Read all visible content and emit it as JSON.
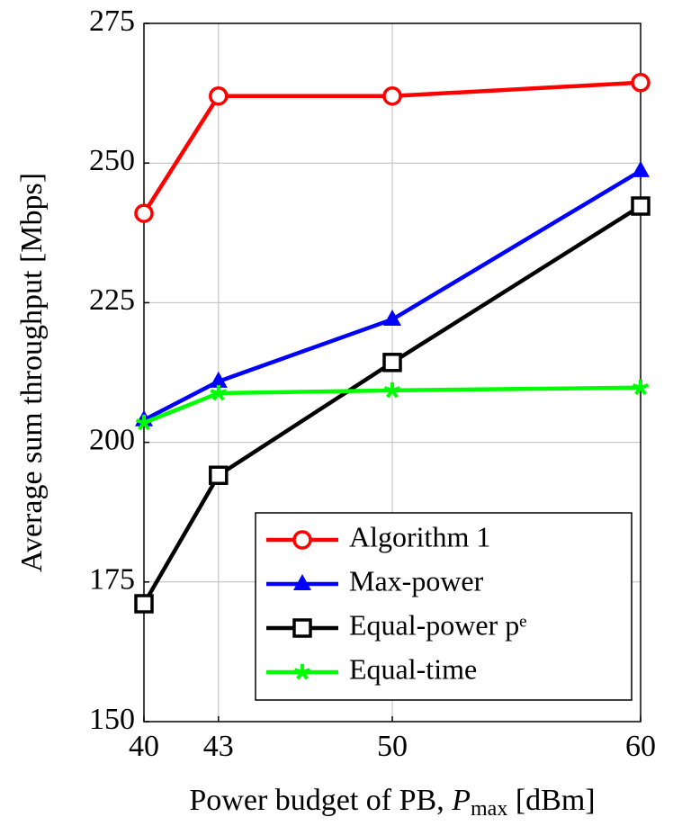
{
  "chart_data": {
    "type": "line",
    "x_label": [
      "Power budget of PB, ",
      "P",
      "max",
      " [dBm]"
    ],
    "y_label": "Average sum throughput [Mbps]",
    "x": [
      40,
      43,
      50,
      60
    ],
    "series": [
      {
        "name": "Algorithm 1",
        "color": "#ff0000",
        "marker": "circle",
        "values": [
          241,
          262,
          262,
          264.4
        ]
      },
      {
        "name": "Max-power",
        "color": "#0000ff",
        "marker": "triangle",
        "values": [
          204,
          210.9,
          222,
          248.6
        ]
      },
      {
        "name": "Equal-power pᵉ",
        "color": "#000000",
        "marker": "square",
        "values": [
          171.1,
          194.1,
          214.3,
          242.3
        ]
      },
      {
        "name": "Equal-time",
        "color": "#00ff00",
        "marker": "star",
        "values": [
          203.5,
          208.8,
          209.3,
          209.8
        ]
      }
    ],
    "xlim": [
      40,
      60
    ],
    "xticks": [
      40,
      43,
      50,
      60
    ],
    "ylim": [
      150,
      275
    ],
    "yticks": [
      150,
      175,
      200,
      225,
      250,
      275
    ],
    "grid": true,
    "legend": "lower right"
  }
}
